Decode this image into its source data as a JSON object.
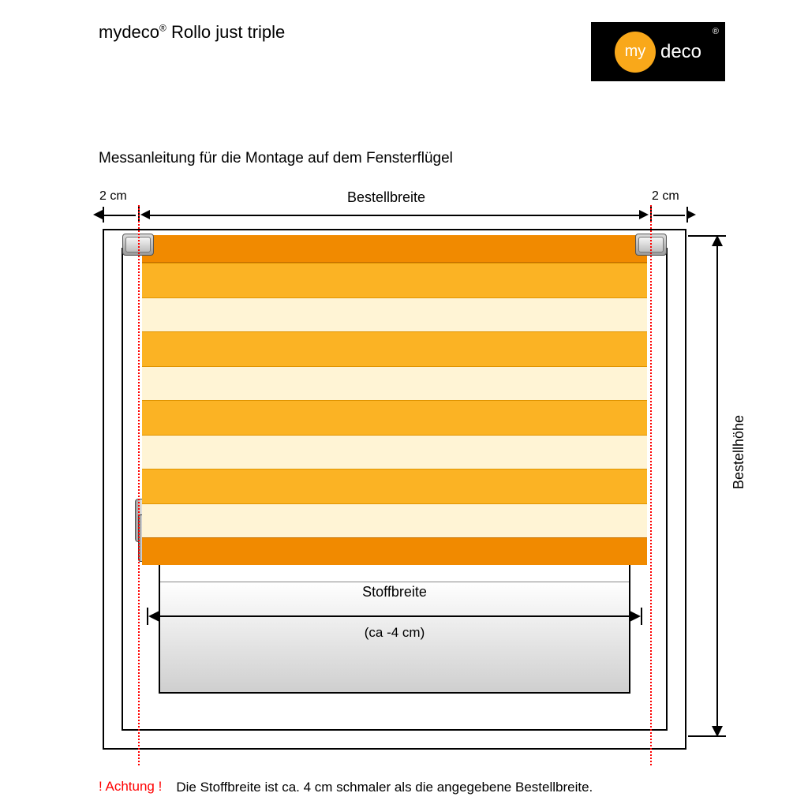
{
  "header": {
    "title_prefix": "mydeco",
    "title_reg": "®",
    "title_suffix": " Rollo just triple",
    "logo": {
      "circle_text": "my",
      "text": "deco",
      "reg": "®",
      "bg": "#000000",
      "circle_color": "#f9a81a",
      "text_color": "#ffffff"
    }
  },
  "subtitle": "Messanleitung für die Montage auf dem Fensterflügel",
  "dimensions": {
    "margin_cm": "2 cm",
    "bestellbreite": "Bestellbreite",
    "stoffbreite": "Stoffbreite",
    "stoffbreite_note": "(ca -4 cm)",
    "bestellhoehe": "Bestellhöhe"
  },
  "blind": {
    "roller_color": "#f18a00",
    "stripe_dark": "#fbb324",
    "stripe_light": "#fff4d5",
    "stripe_pairs": 4
  },
  "guide_line_color": "#ff0000",
  "footer": {
    "warn": "! Achtung !",
    "note": "Die Stoffbreite ist ca. 4 cm schmaler als die angegebene Bestellbreite."
  },
  "colors": {
    "text": "#000000",
    "bg": "#ffffff",
    "handle": "#9a9a9a",
    "glass_shadow": "#d3d3d3"
  },
  "type": "infographic"
}
